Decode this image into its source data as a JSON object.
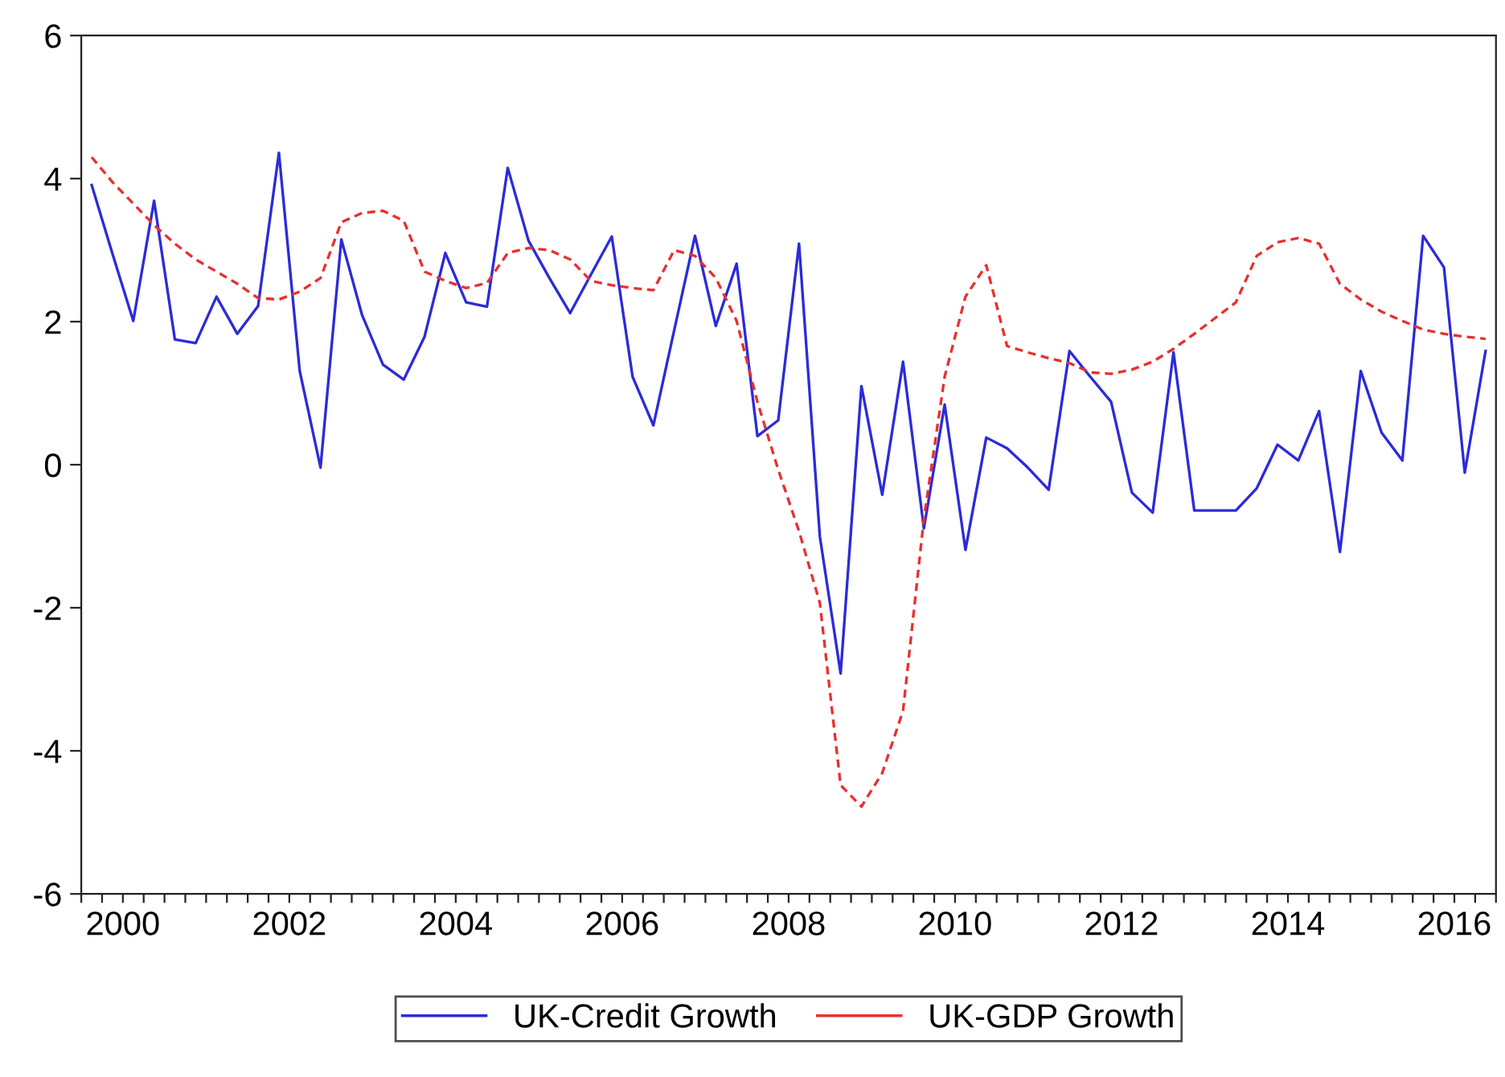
{
  "chart_data": {
    "type": "line",
    "x": [
      2000.125,
      2000.375,
      2000.625,
      2000.875,
      2001.125,
      2001.375,
      2001.625,
      2001.875,
      2002.125,
      2002.375,
      2002.625,
      2002.875,
      2003.125,
      2003.375,
      2003.625,
      2003.875,
      2004.125,
      2004.375,
      2004.625,
      2004.875,
      2005.125,
      2005.375,
      2005.625,
      2005.875,
      2006.125,
      2006.375,
      2006.625,
      2006.875,
      2007.125,
      2007.375,
      2007.625,
      2007.875,
      2008.125,
      2008.375,
      2008.625,
      2008.875,
      2009.125,
      2009.375,
      2009.625,
      2009.875,
      2010.125,
      2010.375,
      2010.625,
      2010.875,
      2011.125,
      2011.375,
      2011.625,
      2011.875,
      2012.125,
      2012.375,
      2012.625,
      2012.875,
      2013.125,
      2013.375,
      2013.625,
      2013.875,
      2014.125,
      2014.375,
      2014.625,
      2014.875,
      2015.125,
      2015.375,
      2015.625,
      2015.875,
      2016.125,
      2016.375,
      2016.625,
      2016.875
    ],
    "series": [
      {
        "name": "UK-Credit Growth",
        "color": "#2b2bd9",
        "line_style": "solid",
        "values": [
          3.91,
          2.95,
          2.01,
          3.69,
          1.75,
          1.7,
          2.35,
          1.83,
          2.22,
          4.36,
          1.31,
          -0.04,
          3.15,
          2.09,
          1.4,
          1.19,
          1.79,
          2.96,
          2.27,
          2.21,
          4.15,
          3.13,
          2.61,
          2.12,
          2.66,
          3.19,
          1.23,
          0.55,
          1.88,
          3.2,
          1.94,
          2.81,
          0.4,
          0.62,
          3.09,
          -1.0,
          -2.92,
          1.1,
          -0.42,
          1.44,
          -0.89,
          0.84,
          -1.19,
          0.38,
          0.23,
          -0.04,
          -0.35,
          1.59,
          1.23,
          0.88,
          -0.39,
          -0.67,
          1.57,
          -0.64,
          -0.64,
          -0.64,
          -0.33,
          0.28,
          0.06,
          0.75,
          -1.22,
          1.31,
          0.45,
          0.06,
          3.2,
          2.76,
          -0.11,
          1.59
        ]
      },
      {
        "name": "UK-GDP Growth",
        "color": "#e8302f",
        "line_style": "dashed",
        "values": [
          4.3,
          3.95,
          3.65,
          3.35,
          3.09,
          2.87,
          2.7,
          2.53,
          2.33,
          2.31,
          2.42,
          2.61,
          3.39,
          3.52,
          3.55,
          3.41,
          2.7,
          2.57,
          2.47,
          2.54,
          2.96,
          3.03,
          3.0,
          2.87,
          2.57,
          2.51,
          2.47,
          2.44,
          3.0,
          2.92,
          2.61,
          2.01,
          0.88,
          -0.07,
          -0.93,
          -1.93,
          -4.48,
          -4.78,
          -4.31,
          -3.44,
          -0.76,
          1.23,
          2.35,
          2.79,
          1.66,
          1.57,
          1.49,
          1.42,
          1.29,
          1.27,
          1.33,
          1.44,
          1.62,
          1.83,
          2.05,
          2.27,
          2.92,
          3.11,
          3.17,
          3.09,
          2.53,
          2.31,
          2.14,
          2.01,
          1.89,
          1.83,
          1.79,
          1.76
        ]
      }
    ],
    "xlim": [
      2000,
      2017
    ],
    "xticks": [
      {
        "value": 2000,
        "label": null
      },
      {
        "value": 2000.25,
        "label": null
      },
      {
        "value": 2000.5,
        "label": "2000"
      },
      {
        "value": 2000.75,
        "label": null
      },
      {
        "value": 2001,
        "label": null
      },
      {
        "value": 2001.25,
        "label": null
      },
      {
        "value": 2001.5,
        "label": null
      },
      {
        "value": 2001.75,
        "label": null
      },
      {
        "value": 2002,
        "label": null
      },
      {
        "value": 2002.25,
        "label": null
      },
      {
        "value": 2002.5,
        "label": "2002"
      },
      {
        "value": 2002.75,
        "label": null
      },
      {
        "value": 2003,
        "label": null
      },
      {
        "value": 2003.25,
        "label": null
      },
      {
        "value": 2003.5,
        "label": null
      },
      {
        "value": 2003.75,
        "label": null
      },
      {
        "value": 2004,
        "label": null
      },
      {
        "value": 2004.25,
        "label": null
      },
      {
        "value": 2004.5,
        "label": "2004"
      },
      {
        "value": 2004.75,
        "label": null
      },
      {
        "value": 2005,
        "label": null
      },
      {
        "value": 2005.25,
        "label": null
      },
      {
        "value": 2005.5,
        "label": null
      },
      {
        "value": 2005.75,
        "label": null
      },
      {
        "value": 2006,
        "label": null
      },
      {
        "value": 2006.25,
        "label": null
      },
      {
        "value": 2006.5,
        "label": "2006"
      },
      {
        "value": 2006.75,
        "label": null
      },
      {
        "value": 2007,
        "label": null
      },
      {
        "value": 2007.25,
        "label": null
      },
      {
        "value": 2007.5,
        "label": null
      },
      {
        "value": 2007.75,
        "label": null
      },
      {
        "value": 2008,
        "label": null
      },
      {
        "value": 2008.25,
        "label": null
      },
      {
        "value": 2008.5,
        "label": "2008"
      },
      {
        "value": 2008.75,
        "label": null
      },
      {
        "value": 2009,
        "label": null
      },
      {
        "value": 2009.25,
        "label": null
      },
      {
        "value": 2009.5,
        "label": null
      },
      {
        "value": 2009.75,
        "label": null
      },
      {
        "value": 2010,
        "label": null
      },
      {
        "value": 2010.25,
        "label": null
      },
      {
        "value": 2010.5,
        "label": "2010"
      },
      {
        "value": 2010.75,
        "label": null
      },
      {
        "value": 2011,
        "label": null
      },
      {
        "value": 2011.25,
        "label": null
      },
      {
        "value": 2011.5,
        "label": null
      },
      {
        "value": 2011.75,
        "label": null
      },
      {
        "value": 2012,
        "label": null
      },
      {
        "value": 2012.25,
        "label": null
      },
      {
        "value": 2012.5,
        "label": "2012"
      },
      {
        "value": 2012.75,
        "label": null
      },
      {
        "value": 2013,
        "label": null
      },
      {
        "value": 2013.25,
        "label": null
      },
      {
        "value": 2013.5,
        "label": null
      },
      {
        "value": 2013.75,
        "label": null
      },
      {
        "value": 2014,
        "label": null
      },
      {
        "value": 2014.25,
        "label": null
      },
      {
        "value": 2014.5,
        "label": "2014"
      },
      {
        "value": 2014.75,
        "label": null
      },
      {
        "value": 2015,
        "label": null
      },
      {
        "value": 2015.25,
        "label": null
      },
      {
        "value": 2015.5,
        "label": null
      },
      {
        "value": 2015.75,
        "label": null
      },
      {
        "value": 2016,
        "label": null
      },
      {
        "value": 2016.25,
        "label": null
      },
      {
        "value": 2016.5,
        "label": "2016"
      },
      {
        "value": 2016.75,
        "label": null
      },
      {
        "value": 2017,
        "label": null
      }
    ],
    "ylim": [
      -6,
      6
    ],
    "yticks": [
      -6,
      -4,
      -2,
      0,
      2,
      4,
      6
    ],
    "grid": false,
    "legend": "bottom",
    "marker": "none"
  }
}
